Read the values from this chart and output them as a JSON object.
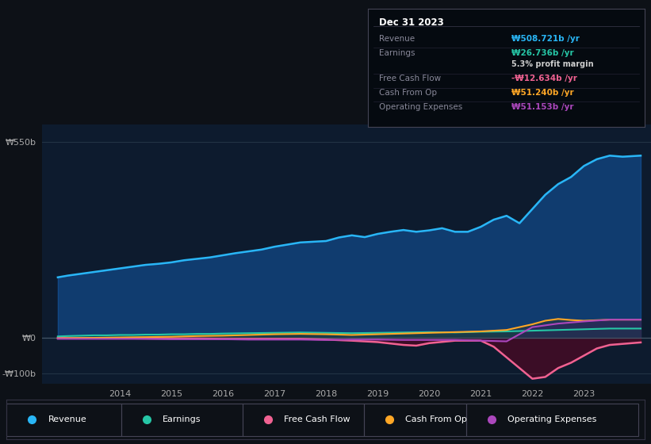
{
  "bg_color": "#0d1117",
  "plot_bg_color": "#0d1b2e",
  "ylabel_top": "₩550b",
  "ylabel_zero": "₩0",
  "ylabel_neg": "-₩100b",
  "xlim": [
    2012.5,
    2024.3
  ],
  "ylim": [
    -130,
    600
  ],
  "yticks": [
    -100,
    0,
    550
  ],
  "xticks": [
    2014,
    2015,
    2016,
    2017,
    2018,
    2019,
    2020,
    2021,
    2022,
    2023
  ],
  "legend_items": [
    {
      "label": "Revenue",
      "color": "#29b6f6"
    },
    {
      "label": "Earnings",
      "color": "#26c6a6"
    },
    {
      "label": "Free Cash Flow",
      "color": "#f06292"
    },
    {
      "label": "Cash From Op",
      "color": "#ffa726"
    },
    {
      "label": "Operating Expenses",
      "color": "#ab47bc"
    }
  ],
  "tooltip": {
    "date": "Dec 31 2023",
    "rows": [
      {
        "label": "Revenue",
        "value": "₩508.721b /yr",
        "color": "#29b6f6"
      },
      {
        "label": "Earnings",
        "value": "₩26.736b /yr",
        "color": "#26c6a6"
      },
      {
        "label": "profit_margin",
        "value": "5.3% profit margin",
        "color": "#ffffff"
      },
      {
        "label": "Free Cash Flow",
        "value": "-₩12.634b /yr",
        "color": "#f06292"
      },
      {
        "label": "Cash From Op",
        "value": "₩51.240b /yr",
        "color": "#ffa726"
      },
      {
        "label": "Operating Expenses",
        "value": "₩51.153b /yr",
        "color": "#ab47bc"
      }
    ]
  },
  "revenue": {
    "x": [
      2012.8,
      2013.0,
      2013.25,
      2013.5,
      2013.75,
      2014.0,
      2014.25,
      2014.5,
      2014.75,
      2015.0,
      2015.25,
      2015.5,
      2015.75,
      2016.0,
      2016.25,
      2016.5,
      2016.75,
      2017.0,
      2017.25,
      2017.5,
      2017.75,
      2018.0,
      2018.25,
      2018.5,
      2018.75,
      2019.0,
      2019.25,
      2019.5,
      2019.75,
      2020.0,
      2020.25,
      2020.5,
      2020.75,
      2021.0,
      2021.25,
      2021.5,
      2021.75,
      2022.0,
      2022.25,
      2022.5,
      2022.75,
      2023.0,
      2023.25,
      2023.5,
      2023.75,
      2024.1
    ],
    "y": [
      170,
      175,
      180,
      185,
      190,
      195,
      200,
      205,
      208,
      212,
      218,
      222,
      226,
      232,
      238,
      243,
      248,
      256,
      262,
      268,
      270,
      272,
      282,
      288,
      283,
      292,
      298,
      303,
      298,
      302,
      308,
      298,
      298,
      312,
      332,
      343,
      322,
      362,
      402,
      432,
      452,
      483,
      502,
      512,
      509,
      512
    ]
  },
  "earnings": {
    "x": [
      2012.8,
      2013.0,
      2013.25,
      2013.5,
      2013.75,
      2014.0,
      2014.25,
      2014.5,
      2014.75,
      2015.0,
      2015.25,
      2015.5,
      2015.75,
      2016.0,
      2016.5,
      2017.0,
      2017.5,
      2018.0,
      2018.5,
      2019.0,
      2019.5,
      2020.0,
      2020.5,
      2021.0,
      2021.5,
      2022.0,
      2022.5,
      2023.0,
      2023.5,
      2024.1
    ],
    "y": [
      4,
      5,
      6,
      7,
      7,
      8,
      8,
      9,
      9,
      10,
      10,
      11,
      11,
      12,
      13,
      14,
      15,
      14,
      13,
      14,
      15,
      16,
      15,
      17,
      18,
      20,
      22,
      24,
      26,
      26
    ]
  },
  "free_cash_flow": {
    "x": [
      2012.8,
      2013.0,
      2013.5,
      2014.0,
      2014.5,
      2015.0,
      2015.5,
      2016.0,
      2016.5,
      2017.0,
      2017.5,
      2018.0,
      2018.5,
      2019.0,
      2019.25,
      2019.5,
      2019.75,
      2020.0,
      2020.5,
      2021.0,
      2021.25,
      2021.5,
      2021.75,
      2022.0,
      2022.25,
      2022.5,
      2022.75,
      2023.0,
      2023.25,
      2023.5,
      2024.1
    ],
    "y": [
      0,
      -1,
      -1,
      -1,
      -2,
      -2,
      -2,
      -3,
      -3,
      -3,
      -3,
      -5,
      -8,
      -12,
      -16,
      -20,
      -22,
      -15,
      -8,
      -8,
      -25,
      -55,
      -85,
      -115,
      -110,
      -85,
      -70,
      -50,
      -30,
      -20,
      -13
    ]
  },
  "cash_from_op": {
    "x": [
      2012.8,
      2013.0,
      2013.5,
      2014.0,
      2014.5,
      2015.0,
      2015.5,
      2016.0,
      2016.5,
      2017.0,
      2017.5,
      2018.0,
      2018.5,
      2019.0,
      2019.5,
      2020.0,
      2020.5,
      2021.0,
      2021.5,
      2022.0,
      2022.25,
      2022.5,
      2022.75,
      2023.0,
      2023.5,
      2024.1
    ],
    "y": [
      -2,
      -1,
      0,
      1,
      2,
      3,
      5,
      6,
      8,
      10,
      11,
      10,
      8,
      10,
      12,
      14,
      16,
      18,
      22,
      38,
      48,
      53,
      50,
      48,
      51,
      51
    ]
  },
  "operating_expenses": {
    "x": [
      2012.8,
      2013.0,
      2013.5,
      2014.0,
      2014.5,
      2015.0,
      2015.5,
      2016.0,
      2016.5,
      2017.0,
      2017.5,
      2018.0,
      2018.5,
      2019.0,
      2019.5,
      2020.0,
      2020.5,
      2021.0,
      2021.5,
      2022.0,
      2022.5,
      2023.0,
      2023.5,
      2024.1
    ],
    "y": [
      -3,
      -3,
      -3,
      -3,
      -3,
      -4,
      -4,
      -4,
      -5,
      -5,
      -5,
      -6,
      -5,
      -5,
      -6,
      -6,
      -6,
      -8,
      -10,
      30,
      40,
      46,
      51,
      51
    ]
  }
}
